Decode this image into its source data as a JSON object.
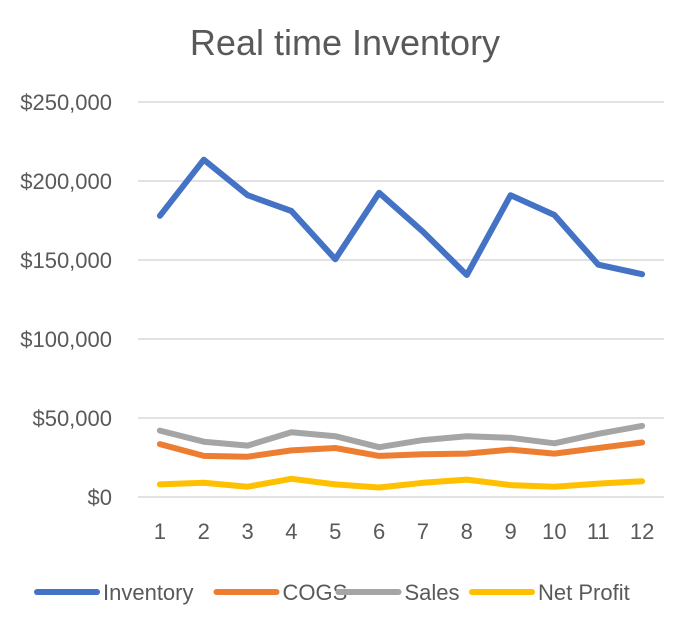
{
  "chart_data": {
    "type": "line",
    "title": "Real time Inventory",
    "xlabel": "",
    "ylabel": "",
    "categories": [
      "1",
      "2",
      "3",
      "4",
      "5",
      "6",
      "7",
      "8",
      "9",
      "10",
      "11",
      "12"
    ],
    "ylim": [
      0,
      250000
    ],
    "yticks": [
      0,
      50000,
      100000,
      150000,
      200000,
      250000
    ],
    "ytick_labels": [
      "$0",
      "$50,000",
      "$100,000",
      "$150,000",
      "$200,000",
      "$250,000"
    ],
    "grid": true,
    "legend_position": "bottom",
    "series": [
      {
        "name": "Inventory",
        "color": "#4472C4",
        "values": [
          178000,
          213500,
          191000,
          181000,
          150500,
          192500,
          168000,
          140500,
          191000,
          178500,
          147000,
          141000
        ]
      },
      {
        "name": "COGS",
        "color": "#ED7D31",
        "values": [
          33500,
          26000,
          25500,
          29500,
          31000,
          26000,
          27000,
          27500,
          30000,
          27500,
          31000,
          34500
        ]
      },
      {
        "name": "Sales",
        "color": "#A5A5A5",
        "values": [
          42000,
          35000,
          32500,
          41000,
          38500,
          31500,
          36000,
          38500,
          37500,
          34000,
          40000,
          45000
        ]
      },
      {
        "name": "Net Profit",
        "color": "#FFC000",
        "values": [
          8000,
          9000,
          6500,
          11500,
          8000,
          6000,
          9000,
          11000,
          7500,
          6500,
          8500,
          10000
        ]
      }
    ]
  }
}
